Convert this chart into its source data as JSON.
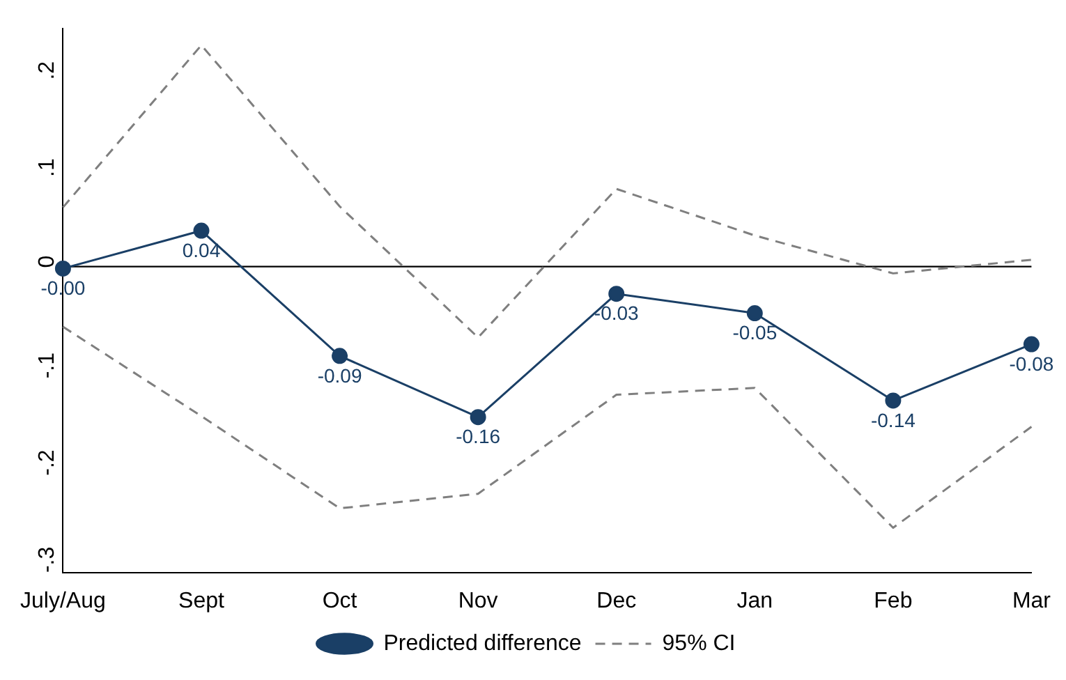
{
  "chart_data": {
    "type": "line",
    "categories": [
      "July/Aug",
      "Sept",
      "Oct",
      "Nov",
      "Dec",
      "Jan",
      "Feb",
      "Mar"
    ],
    "series": [
      {
        "name": "Predicted difference",
        "color": "#1a3f66",
        "values": [
          -0.002,
          0.037,
          -0.092,
          -0.155,
          -0.028,
          -0.048,
          -0.138,
          -0.08
        ],
        "value_labels": [
          "-0.00",
          "0.04",
          "-0.09",
          "-0.16",
          "-0.03",
          "-0.05",
          "-0.14",
          "-0.08"
        ],
        "marker": "circle",
        "line_style": "solid"
      },
      {
        "name": "95% CI",
        "color": "#7f7f7f",
        "values": [
          0.061,
          0.228,
          0.062,
          -0.073,
          0.08,
          0.032,
          -0.007,
          0.007
        ],
        "marker": "none",
        "line_style": "dashed"
      },
      {
        "color": "#7f7f7f",
        "values": [
          -0.062,
          -0.154,
          -0.249,
          -0.234,
          -0.132,
          -0.125,
          -0.269,
          -0.165
        ],
        "marker": "none",
        "line_style": "dashed"
      }
    ],
    "ylim": [
      -0.315,
      0.245
    ],
    "yticks": [
      {
        "value": -0.3,
        "label": "-.3"
      },
      {
        "value": -0.2,
        "label": "-.2"
      },
      {
        "value": -0.1,
        "label": "-.1"
      },
      {
        "value": 0,
        "label": "0"
      },
      {
        "value": 0.1,
        "label": ".1"
      },
      {
        "value": 0.2,
        "label": ".2"
      }
    ],
    "ref_lines": [
      {
        "axis": "y",
        "value": 0,
        "color": "#000000"
      }
    ],
    "grid": false,
    "legend": "bottom"
  }
}
